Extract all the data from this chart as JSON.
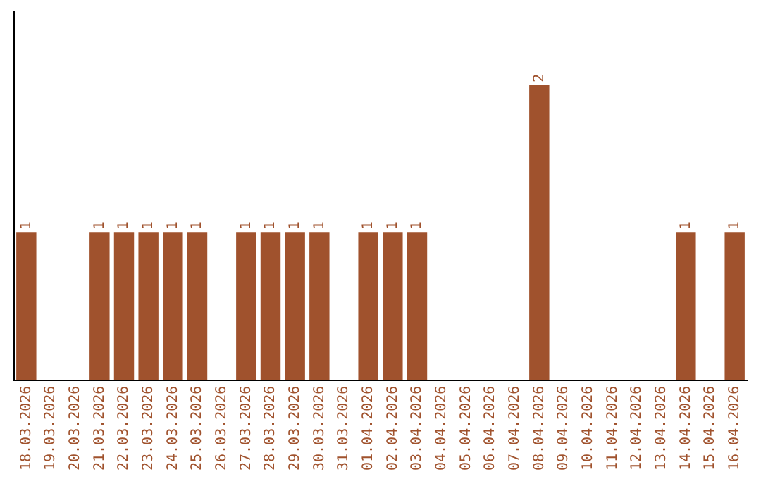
{
  "chart_data": {
    "type": "bar",
    "categories": [
      "18.03.2026",
      "19.03.2026",
      "20.03.2026",
      "21.03.2026",
      "22.03.2026",
      "23.03.2026",
      "24.03.2026",
      "25.03.2026",
      "26.03.2026",
      "27.03.2026",
      "28.03.2026",
      "29.03.2026",
      "30.03.2026",
      "31.03.2026",
      "01.04.2026",
      "02.04.2026",
      "03.04.2026",
      "04.04.2026",
      "05.04.2026",
      "06.04.2026",
      "07.04.2026",
      "08.04.2026",
      "09.04.2026",
      "10.04.2026",
      "11.04.2026",
      "12.04.2026",
      "13.04.2026",
      "14.04.2026",
      "15.04.2026",
      "16.04.2026"
    ],
    "values": [
      1,
      0,
      0,
      1,
      1,
      1,
      1,
      1,
      0,
      1,
      1,
      1,
      1,
      0,
      1,
      1,
      1,
      0,
      0,
      0,
      0,
      2,
      0,
      0,
      0,
      0,
      0,
      1,
      0,
      1
    ],
    "value_labels": [
      "1",
      null,
      null,
      "1",
      "1",
      "1",
      "1",
      "1",
      null,
      "1",
      "1",
      "1",
      "1",
      null,
      "1",
      "1",
      "1",
      null,
      null,
      null,
      null,
      "2",
      null,
      null,
      null,
      null,
      null,
      "1",
      null,
      "1"
    ],
    "color": "#a0522d",
    "tick_labels": "x",
    "grid": false,
    "legend": false
  }
}
